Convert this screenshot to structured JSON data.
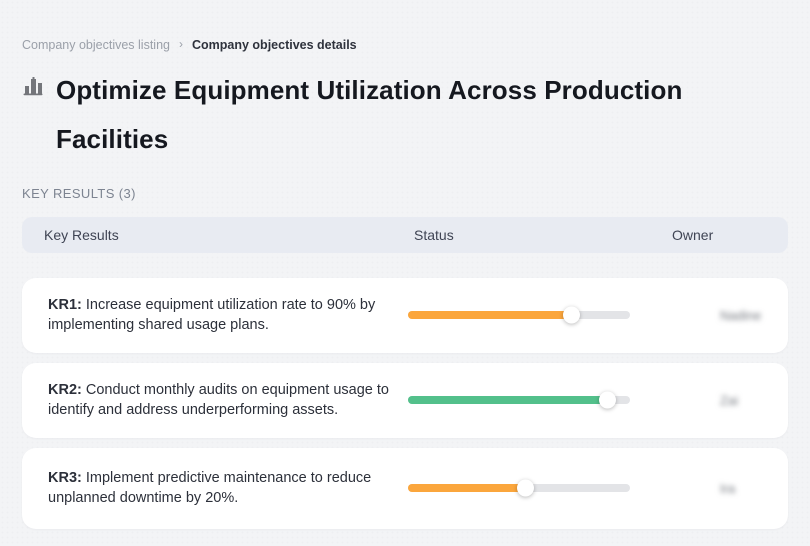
{
  "breadcrumb": {
    "separator": "›",
    "items": [
      {
        "label": "Company objectives listing"
      },
      {
        "label": "Company objectives details"
      }
    ]
  },
  "page": {
    "title": "Optimize Equipment Utilization Across Production Facilities",
    "title_icon": "buildings-icon"
  },
  "section": {
    "label": "KEY RESULTS (3)"
  },
  "table": {
    "headers": [
      "Key Results",
      "Status",
      "Owner"
    ],
    "rows": [
      {
        "kr_label": "KR1:",
        "description": "Increase equipment utilization rate to 90% by implementing shared usage plans.",
        "progress_percent": 74,
        "progress_color": "#FBA63C",
        "owner": {
          "name": "Nadine"
        }
      },
      {
        "kr_label": "KR2:",
        "description": "Conduct monthly audits on equipment usage to identify and address underperforming assets.",
        "progress_percent": 90,
        "progress_color": "#53C08B",
        "owner": {
          "name": "Zai"
        }
      },
      {
        "kr_label": "KR3:",
        "description": "Implement predictive maintenance to reduce unplanned downtime by 20%.",
        "progress_percent": 53,
        "progress_color": "#FBA63C",
        "owner": {
          "name": "Ira"
        }
      }
    ]
  },
  "colors": {
    "page_bg": "#F3F4F6",
    "header_bg": "#E8EBF2",
    "track": "#E3E4E7",
    "accent_orange": "#FBA63C",
    "accent_green": "#53C08B"
  }
}
